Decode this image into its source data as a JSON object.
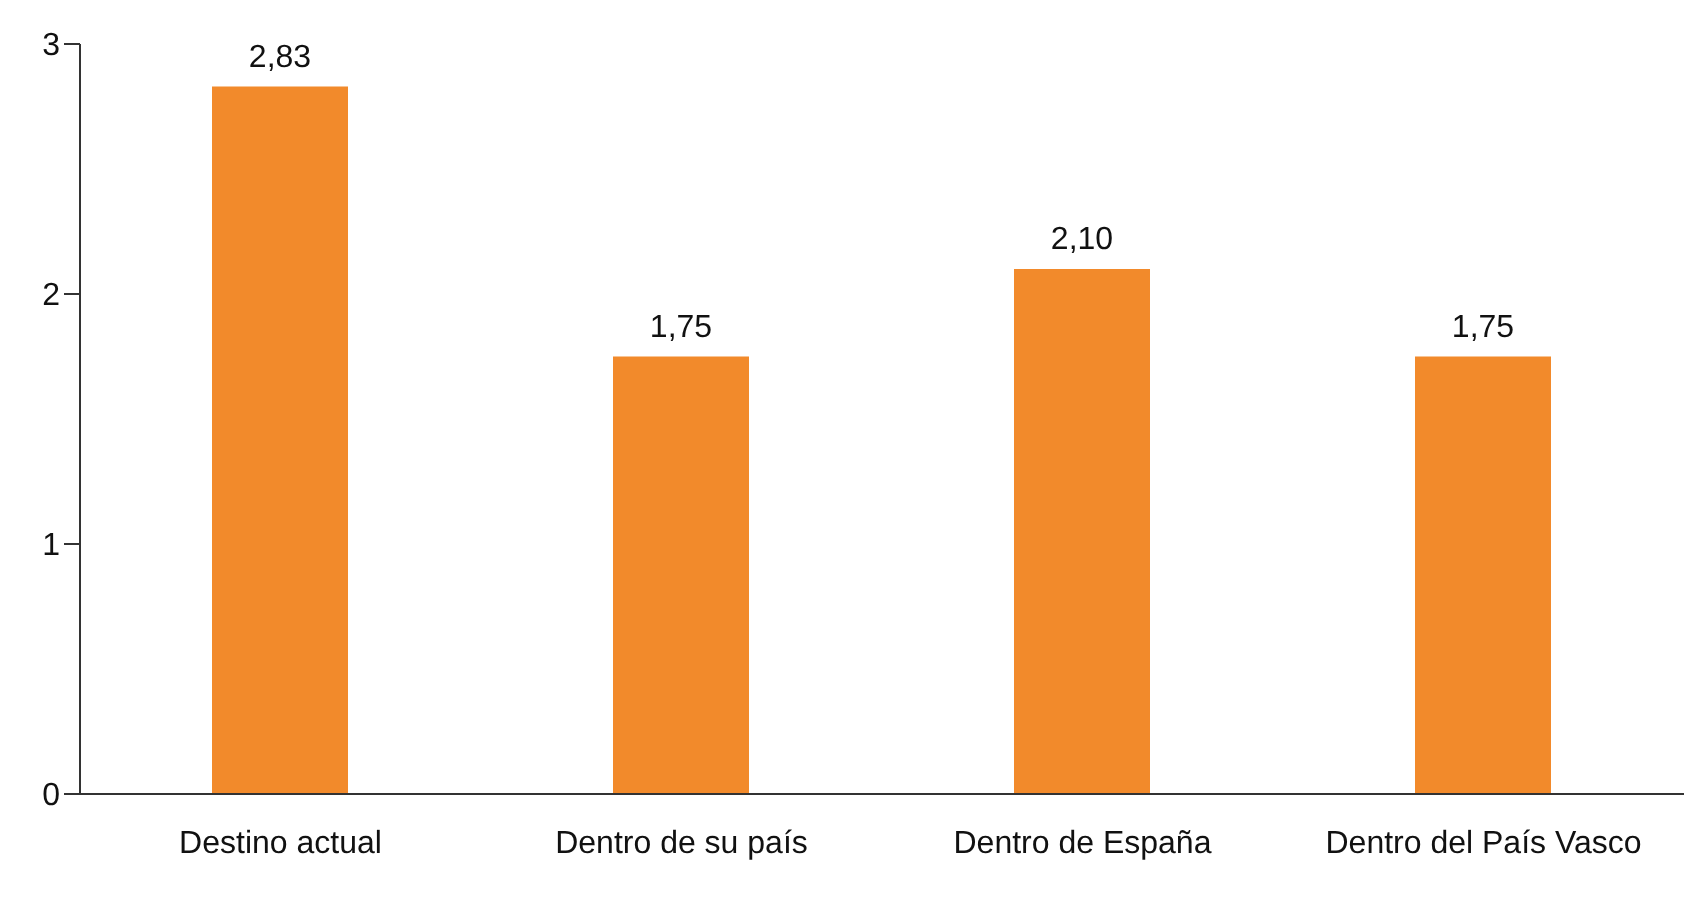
{
  "chart_data": {
    "type": "bar",
    "categories": [
      "Destino actual",
      "Dentro de su país",
      "Dentro de España",
      "Dentro del País Vasco"
    ],
    "values": [
      2.83,
      1.75,
      2.1,
      1.75
    ],
    "value_labels": [
      "2,83",
      "1,75",
      "2,10",
      "1,75"
    ],
    "color": "#f28a2b",
    "ylim": [
      0,
      3
    ],
    "yticks": [
      0,
      1,
      2,
      3
    ],
    "grid": false,
    "legend": false
  }
}
